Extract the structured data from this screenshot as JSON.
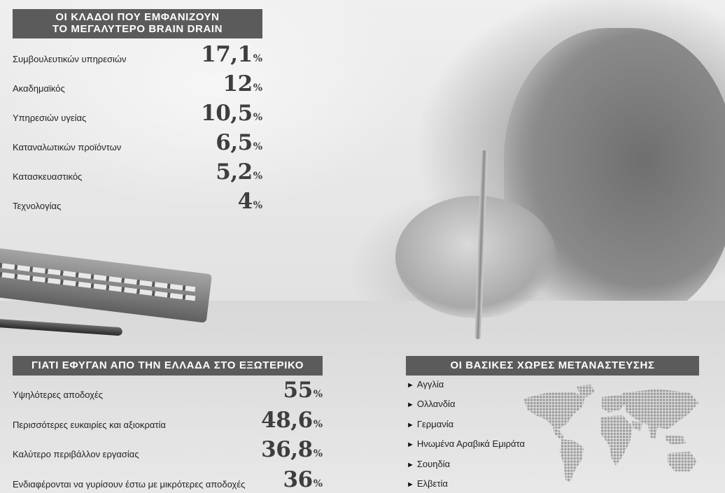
{
  "sectors": {
    "title_line1": "ΟΙ ΚΛΑΔΟΙ ΠΟΥ ΕΜΦΑΝΙΖΟΥΝ",
    "title_line2": "ΤΟ ΜΕΓΑΛΥΤΕΡΟ BRAIN DRAIN",
    "items": [
      {
        "label": "Συμβουλευτικών υπηρεσιών",
        "value": "17,1",
        "unit": "%"
      },
      {
        "label": "Ακαδημαϊκός",
        "value": "12",
        "unit": "%"
      },
      {
        "label": "Υπηρεσιών υγείας",
        "value": "10,5",
        "unit": "%"
      },
      {
        "label": "Καταναλωτικών προϊόντων",
        "value": "6,5",
        "unit": "%"
      },
      {
        "label": "Κατασκευαστικός",
        "value": "5,2",
        "unit": "%"
      },
      {
        "label": "Τεχνολογίας",
        "value": "4",
        "unit": "%"
      }
    ]
  },
  "reasons": {
    "title": "ΓΙΑΤΙ ΕΦΥΓΑΝ ΑΠΟ ΤΗΝ ΕΛΛΑΔΑ ΣΤΟ ΕΞΩΤΕΡΙΚΟ",
    "items": [
      {
        "label": "Υψηλότερες αποδοχές",
        "value": "55",
        "unit": "%"
      },
      {
        "label": "Περισσότερες ευκαιρίες και αξιοκρατία",
        "value": "48,6",
        "unit": "%"
      },
      {
        "label": "Καλύτερο περιβάλλον εργασίας",
        "value": "36,8",
        "unit": "%"
      },
      {
        "label": "Ενδιαφέρονται να γυρίσουν έστω με μικρότερες αποδοχές",
        "value": "36",
        "unit": "%"
      }
    ]
  },
  "countries": {
    "title": "ΟΙ ΒΑΣΙΚΕΣ ΧΩΡΕΣ ΜΕΤΑΝΑΣΤΕΥΣΗΣ",
    "bullet": "►",
    "items": [
      "Αγγλία",
      "Ολλανδία",
      "Γερμανία",
      "Ηνωμένα Αραβικά Εμιράτα",
      "Σουηδία",
      "Ελβετία"
    ]
  },
  "chart_data": [
    {
      "type": "table",
      "title": "ΟΙ ΚΛΑΔΟΙ ΠΟΥ ΕΜΦΑΝΙΖΟΥΝ ΤΟ ΜΕΓΑΛΥΤΕΡΟ BRAIN DRAIN",
      "categories": [
        "Συμβουλευτικών υπηρεσιών",
        "Ακαδημαϊκός",
        "Υπηρεσιών υγείας",
        "Καταναλωτικών προϊόντων",
        "Κατασκευαστικός",
        "Τεχνολογίας"
      ],
      "values": [
        17.1,
        12,
        10.5,
        6.5,
        5.2,
        4
      ]
    },
    {
      "type": "table",
      "title": "ΓΙΑΤΙ ΕΦΥΓΑΝ ΑΠΟ ΤΗΝ ΕΛΛΑΔΑ ΣΤΟ ΕΞΩΤΕΡΙΚΟ",
      "categories": [
        "Υψηλότερες αποδοχές",
        "Περισσότερες ευκαιρίες και αξιοκρατία",
        "Καλύτερο περιβάλλον εργασίας",
        "Ενδιαφέρονται να γυρίσουν έστω με μικρότερες αποδοχές"
      ],
      "values": [
        55,
        48.6,
        36.8,
        36
      ]
    }
  ]
}
